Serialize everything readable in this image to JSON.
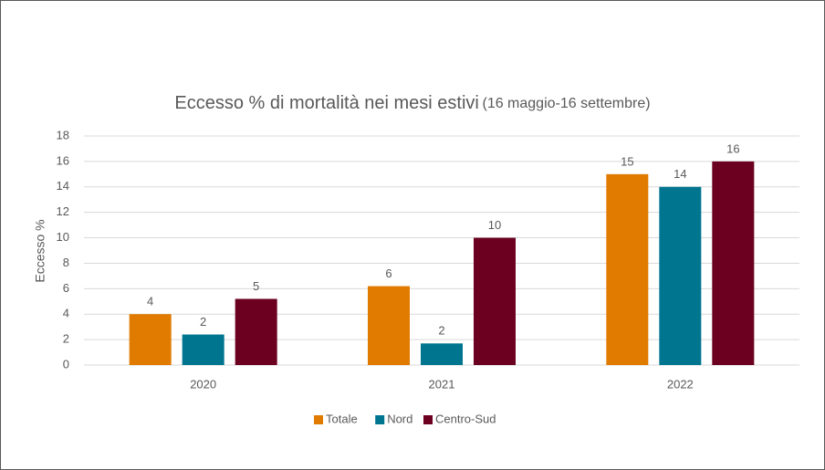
{
  "chart_data": {
    "type": "bar",
    "title": "Eccesso % di mortalità nei mesi estivi",
    "subtitle": "(16 maggio-16 settembre)",
    "y_label": "Eccesso %",
    "categories": [
      "2020",
      "2021",
      "2022"
    ],
    "series": [
      {
        "name": "Totale",
        "color": "#e07b00",
        "values": [
          4.0,
          6.2,
          15.0
        ],
        "value_labels": [
          "4",
          "6",
          "15"
        ]
      },
      {
        "name": "Nord",
        "color": "#00758f",
        "values": [
          2.4,
          1.7,
          14.0
        ],
        "value_labels": [
          "2",
          "2",
          "14"
        ]
      },
      {
        "name": "Centro-Sud",
        "color": "#6b0020",
        "values": [
          5.2,
          10.0,
          16.0
        ],
        "value_labels": [
          "5",
          "10",
          "16"
        ]
      }
    ],
    "ylim": [
      0,
      18
    ],
    "yticks": [
      0,
      2,
      4,
      6,
      8,
      10,
      12,
      14,
      16,
      18
    ],
    "grid": true,
    "legend": "bottom"
  }
}
